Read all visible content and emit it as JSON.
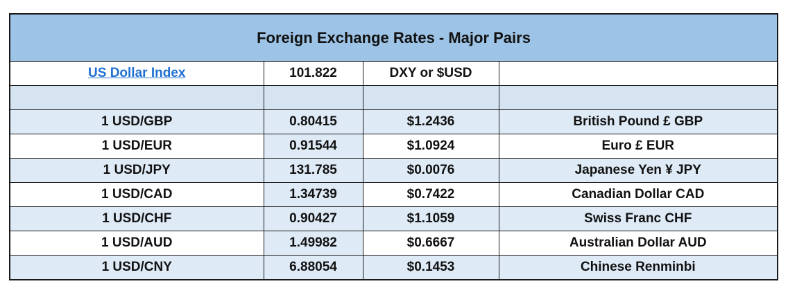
{
  "table": {
    "title": "Foreign Exchange Rates - Major Pairs",
    "index_row": {
      "label": "US Dollar Index",
      "value": "101.822",
      "symbol": "DXY or $USD",
      "note": ""
    },
    "rows": [
      {
        "pair": "1 USD/GBP",
        "rate": "0.80415",
        "usd_value": "$1.2436",
        "currency": "British Pound £ GBP"
      },
      {
        "pair": "1 USD/EUR",
        "rate": "0.91544",
        "usd_value": "$1.0924",
        "currency": "Euro £ EUR"
      },
      {
        "pair": "1 USD/JPY",
        "rate": "131.785",
        "usd_value": "$0.0076",
        "currency": "Japanese Yen ¥ JPY"
      },
      {
        "pair": "1 USD/CAD",
        "rate": "1.34739",
        "usd_value": "$0.7422",
        "currency": "Canadian Dollar CAD"
      },
      {
        "pair": "1 USD/CHF",
        "rate": "0.90427",
        "usd_value": "$1.1059",
        "currency": "Swiss Franc CHF"
      },
      {
        "pair": "1 USD/AUD",
        "rate": "1.49982",
        "usd_value": "$0.6667",
        "currency": "Australian Dollar AUD"
      },
      {
        "pair": "1 USD/CNY",
        "rate": "6.88054",
        "usd_value": "$0.1453",
        "currency": "Chinese Renminbi"
      }
    ],
    "colors": {
      "header_bg": "#9dc3e6",
      "tint_bg": "#deeaf6",
      "spacer_bg": "#d6e4f2",
      "link": "#1f6fd1"
    }
  }
}
